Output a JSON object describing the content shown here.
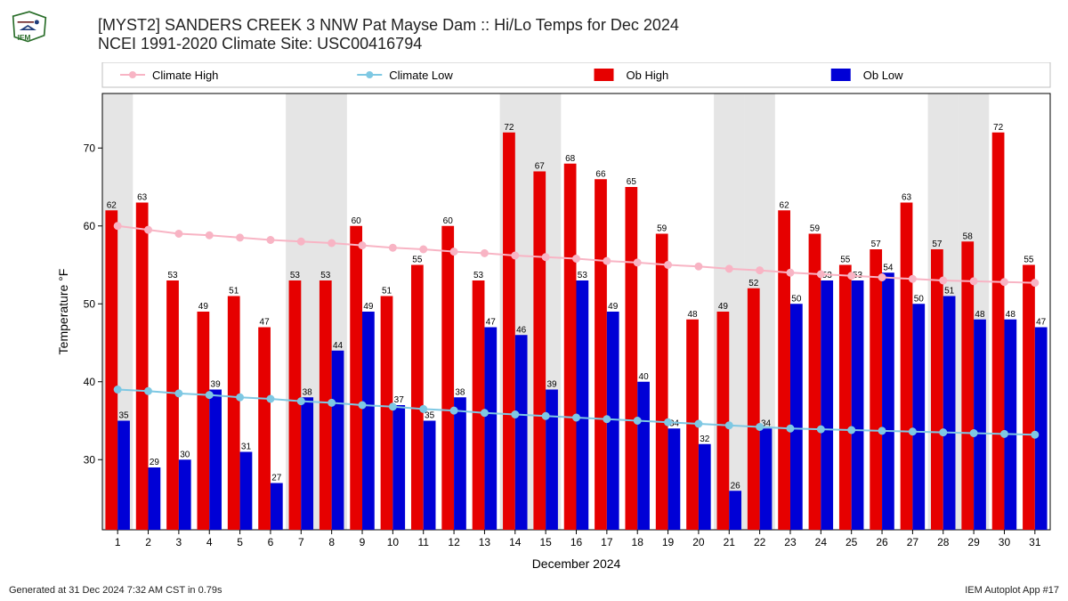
{
  "title_line1": "[MYST2] SANDERS CREEK 3 NNW Pat Mayse Dam :: Hi/Lo Temps for Dec 2024",
  "title_line2": "NCEI 1991-2020 Climate Site: USC00416794",
  "footer_left": "Generated at 31 Dec 2024 7:32 AM CST in 0.79s",
  "footer_right": "IEM Autoplot App #17",
  "chart": {
    "type": "bar+line",
    "xlabel": "December 2024",
    "ylabel": "Temperature °F",
    "ylim": [
      21,
      77
    ],
    "yticks": [
      30,
      40,
      50,
      60,
      70
    ],
    "xticks_count": 31,
    "bar_width": 0.4,
    "label_fontsize": 14,
    "tick_fontsize": 12,
    "value_fontsize": 10,
    "background_color": "#ffffff",
    "weekend_band_color": "#e5e5e5",
    "border_color": "#000000",
    "weekend_days": [
      1,
      7,
      8,
      14,
      15,
      21,
      22,
      28,
      29
    ],
    "legend": {
      "position": "top",
      "fontsize": 13,
      "items": [
        {
          "label": "Climate High",
          "type": "line",
          "color": "#f8b4c4",
          "marker": "circle"
        },
        {
          "label": "Climate Low",
          "type": "line",
          "color": "#7ec8e3",
          "marker": "circle"
        },
        {
          "label": "Ob High",
          "type": "bar",
          "color": "#e60000"
        },
        {
          "label": "Ob Low",
          "type": "bar",
          "color": "#0000d6"
        }
      ]
    },
    "series": {
      "ob_high": {
        "color": "#e60000",
        "values": [
          62,
          63,
          53,
          49,
          51,
          47,
          53,
          53,
          60,
          51,
          55,
          60,
          53,
          72,
          67,
          68,
          66,
          65,
          59,
          48,
          49,
          52,
          62,
          59,
          55,
          57,
          63,
          57,
          58,
          72,
          55
        ]
      },
      "ob_low": {
        "color": "#0000d6",
        "values": [
          35,
          29,
          30,
          39,
          31,
          27,
          38,
          44,
          49,
          37,
          35,
          38,
          47,
          46,
          39,
          53,
          49,
          40,
          34,
          32,
          26,
          34,
          50,
          53,
          53,
          54,
          50,
          51,
          48,
          48,
          47
        ]
      },
      "climate_high": {
        "color": "#f8b4c4",
        "marker_fill": "#f8b4c4",
        "marker_size": 4,
        "values": [
          60,
          59.5,
          59,
          58.8,
          58.5,
          58.2,
          58,
          57.8,
          57.5,
          57.2,
          57,
          56.7,
          56.5,
          56.2,
          56,
          55.8,
          55.5,
          55.3,
          55,
          54.8,
          54.5,
          54.3,
          54,
          53.8,
          53.6,
          53.4,
          53.2,
          53,
          52.9,
          52.8,
          52.7
        ]
      },
      "climate_low": {
        "color": "#7ec8e3",
        "marker_fill": "#7ec8e3",
        "marker_size": 4,
        "values": [
          39,
          38.8,
          38.5,
          38.3,
          38,
          37.8,
          37.5,
          37.3,
          37,
          36.8,
          36.5,
          36.3,
          36,
          35.8,
          35.6,
          35.4,
          35.2,
          35,
          34.8,
          34.6,
          34.4,
          34.2,
          34,
          33.9,
          33.8,
          33.7,
          33.6,
          33.5,
          33.4,
          33.3,
          33.2
        ]
      }
    }
  }
}
